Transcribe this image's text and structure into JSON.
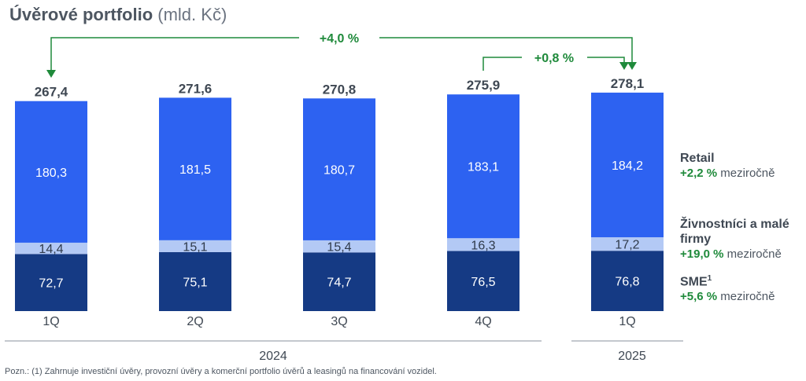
{
  "title": {
    "main": "Úvěrové portfolio",
    "unit": "(mld. Kč)"
  },
  "colors": {
    "retail": "#2d62f1",
    "small_business": "#b3c9f5",
    "sme": "#153a84",
    "growth": "#1f8a3b",
    "text": "#4d5661"
  },
  "chart_data": {
    "type": "bar",
    "stacked": true,
    "categories": [
      "1Q",
      "2Q",
      "3Q",
      "4Q",
      "1Q"
    ],
    "groups": [
      {
        "label": "2024",
        "categories": [
          "1Q",
          "2Q",
          "3Q",
          "4Q"
        ]
      },
      {
        "label": "2025",
        "categories": [
          "1Q"
        ]
      }
    ],
    "series": [
      {
        "name": "SME",
        "values": [
          72.7,
          75.1,
          74.7,
          76.5,
          76.8
        ],
        "labels": [
          "72,7",
          "75,1",
          "74,7",
          "76,5",
          "76,8"
        ]
      },
      {
        "name": "Živnostníci a malé firmy",
        "values": [
          14.4,
          15.1,
          15.4,
          16.3,
          17.2
        ],
        "labels": [
          "14,4",
          "15,1",
          "15,4",
          "16,3",
          "17,2"
        ]
      },
      {
        "name": "Retail",
        "values": [
          180.3,
          181.5,
          180.7,
          183.1,
          184.2
        ],
        "labels": [
          "180,3",
          "181,5",
          "180,7",
          "183,1",
          "184,2"
        ]
      }
    ],
    "totals": [
      267.4,
      271.6,
      270.8,
      275.9,
      278.1
    ],
    "total_labels": [
      "267,4",
      "271,6",
      "270,8",
      "275,9",
      "278,1"
    ],
    "annotations": [
      {
        "from": "1Q 2024",
        "to": "1Q 2025",
        "text": "+4,0 %"
      },
      {
        "from": "4Q 2024",
        "to": "1Q 2025",
        "text": "+0,8 %"
      }
    ]
  },
  "legend": [
    {
      "name": "Retail",
      "sup": "",
      "change": "+2,2 %",
      "suffix": "meziročně"
    },
    {
      "name": "Živnostníci a malé firmy",
      "sup": "",
      "change": "+19,0 %",
      "suffix": "meziročně"
    },
    {
      "name": "SME",
      "sup": "1",
      "change": "+5,6 %",
      "suffix": "meziročně"
    }
  ],
  "footnote": "Pozn.: (1) Zahrnuje investiční úvěry, provozní úvěry a komerční portfolio úvěrů a leasingů na financování vozidel."
}
